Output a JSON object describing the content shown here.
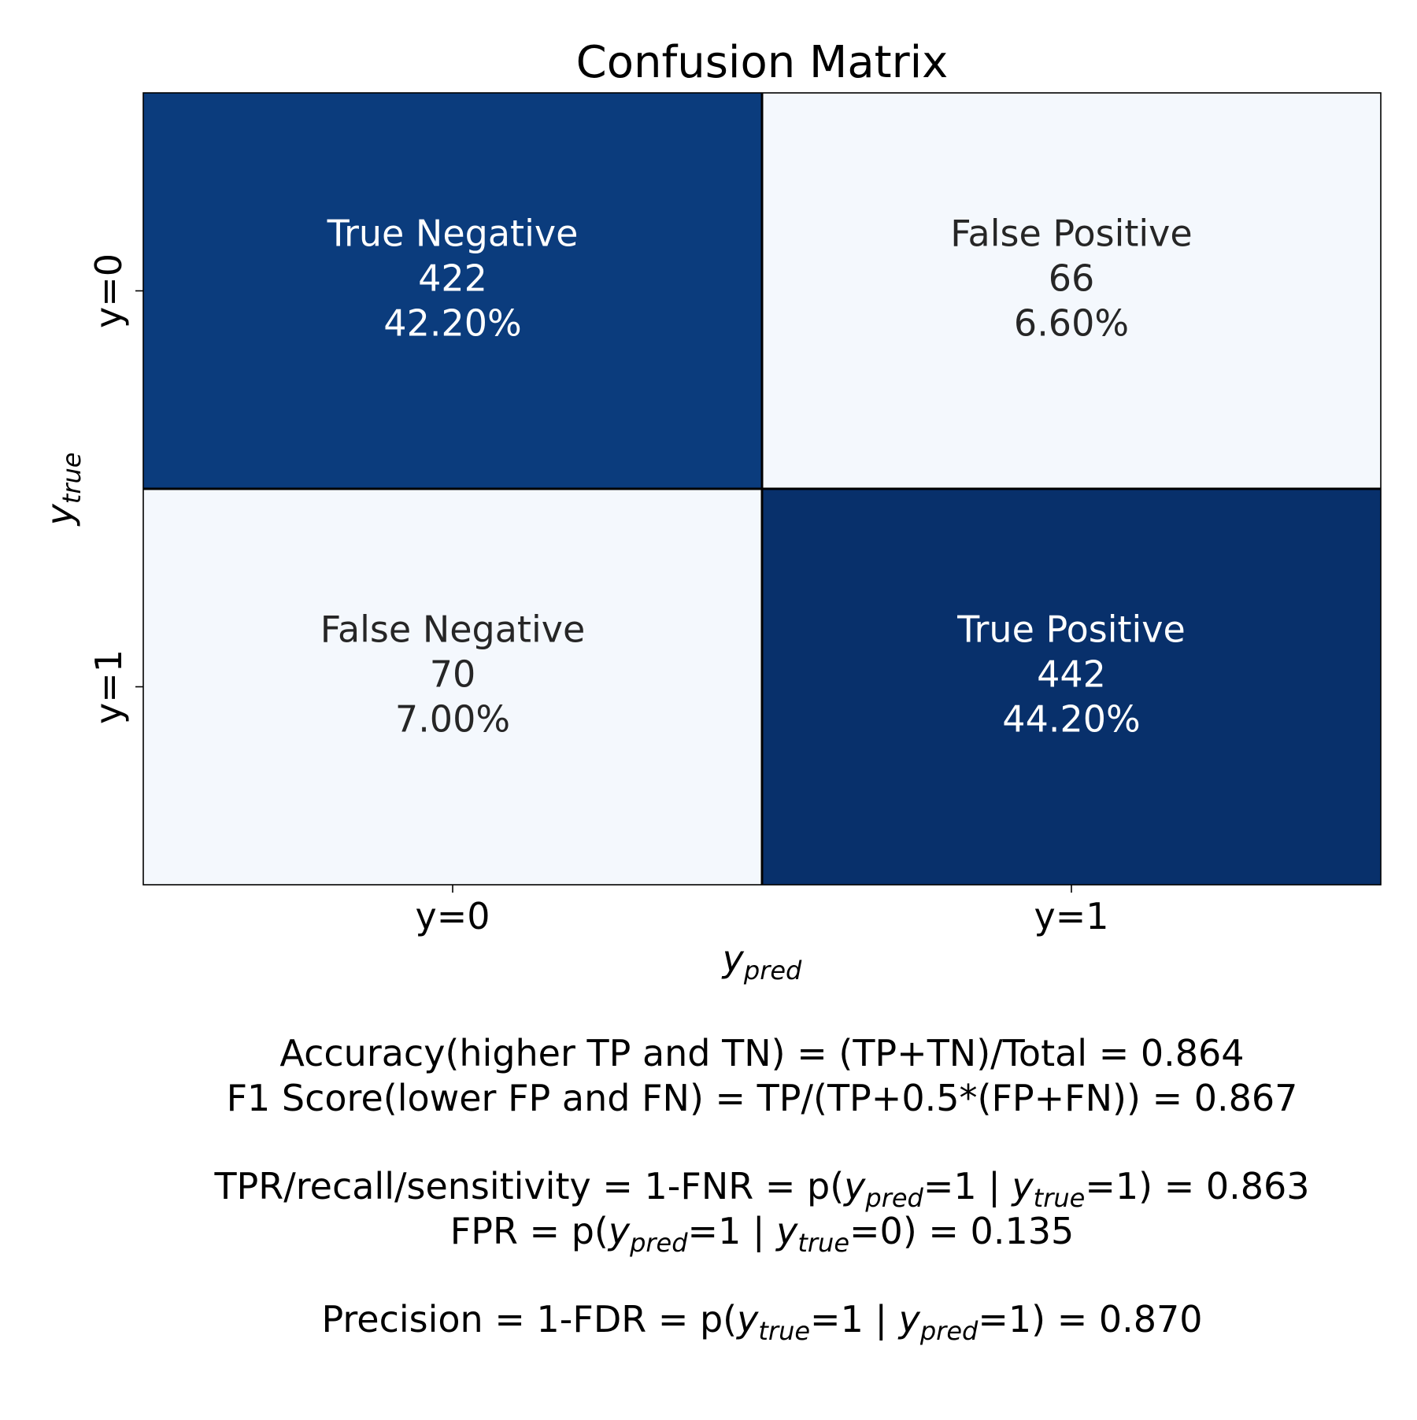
{
  "chart_data": {
    "type": "heatmap",
    "title": "Confusion Matrix",
    "xlabel": {
      "base": "y",
      "sub": "pred"
    },
    "ylabel": {
      "base": "y",
      "sub": "true"
    },
    "x_tick_labels": [
      "y=0",
      "y=1"
    ],
    "y_tick_labels": [
      "y=0",
      "y=1"
    ],
    "colormap": "Blues",
    "colors": {
      "dark_cell": "#0b3c7d",
      "darkest_cell": "#08306b",
      "light_cell": "#f4f8fd",
      "dark_text": "#ffffff",
      "light_text": "#262626",
      "grid": "#000000"
    },
    "cells": [
      {
        "row": 0,
        "col": 0,
        "label": "True Negative",
        "count": "422",
        "percent": "42.20%",
        "value": 422
      },
      {
        "row": 0,
        "col": 1,
        "label": "False Positive",
        "count": "66",
        "percent": "6.60%",
        "value": 66
      },
      {
        "row": 1,
        "col": 0,
        "label": "False Negative",
        "count": "70",
        "percent": "7.00%",
        "value": 70
      },
      {
        "row": 1,
        "col": 1,
        "label": "True Positive",
        "count": "442",
        "percent": "44.20%",
        "value": 442
      }
    ],
    "metrics": [
      [
        {
          "t": "Accuracy(higher TP and TN) = (TP+TN)/Total = 0.864"
        }
      ],
      [
        {
          "t": "F1 Score(lower FP and FN) = TP/(TP+0.5*(FP+FN)) = 0.867"
        }
      ],
      [
        {
          "t": "TPR/recall/sensitivity = 1-FNR = p("
        },
        {
          "t": "y",
          "i": true
        },
        {
          "t": "pred",
          "i": true,
          "sub": true
        },
        {
          "t": "=1 | "
        },
        {
          "t": "y",
          "i": true
        },
        {
          "t": "true",
          "i": true,
          "sub": true
        },
        {
          "t": "=1) = 0.863"
        }
      ],
      [
        {
          "t": "FPR = p("
        },
        {
          "t": "y",
          "i": true
        },
        {
          "t": "pred",
          "i": true,
          "sub": true
        },
        {
          "t": "=1 | "
        },
        {
          "t": "y",
          "i": true
        },
        {
          "t": "true",
          "i": true,
          "sub": true
        },
        {
          "t": "=0) = 0.135"
        }
      ],
      [
        {
          "t": "Precision = 1-FDR = p("
        },
        {
          "t": "y",
          "i": true
        },
        {
          "t": "true",
          "i": true,
          "sub": true
        },
        {
          "t": "=1 | "
        },
        {
          "t": "y",
          "i": true
        },
        {
          "t": "pred",
          "i": true,
          "sub": true
        },
        {
          "t": "=1) = 0.870"
        }
      ]
    ]
  }
}
